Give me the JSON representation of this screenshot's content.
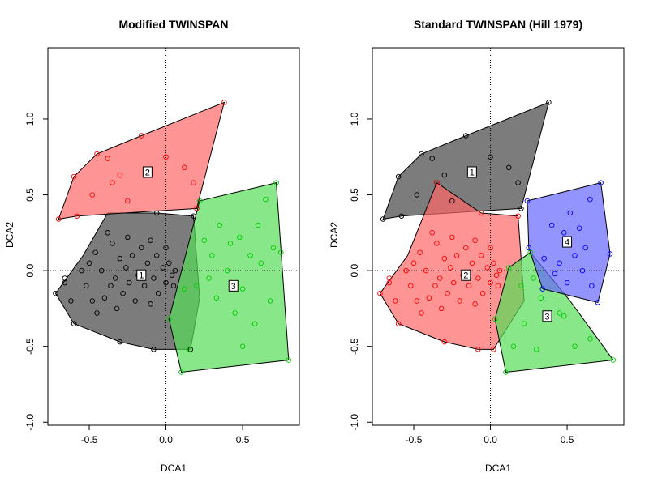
{
  "chart_data": [
    {
      "type": "scatter",
      "title": "Modified TWINSPAN",
      "xlabel": "DCA1",
      "ylabel": "DCA2",
      "xlim": [
        -0.77,
        0.87
      ],
      "ylim": [
        -1.02,
        1.47
      ],
      "xticks": [
        -0.5,
        0.0,
        0.5
      ],
      "xtick_labels": [
        "-0.5",
        "0.0",
        "0.5"
      ],
      "yticks": [
        -1.0,
        -0.5,
        0.0,
        0.5,
        1.0
      ],
      "ytick_labels": [
        "-1.0",
        "-0.5",
        "0.0",
        "0.5",
        "1.0"
      ],
      "groups": [
        {
          "label": "1",
          "color": "#000000",
          "fill": "#444444",
          "label_pos": [
            -0.16,
            -0.03
          ],
          "hull": [
            [
              -0.72,
              -0.15
            ],
            [
              -0.6,
              -0.35
            ],
            [
              -0.3,
              -0.47
            ],
            [
              -0.08,
              -0.52
            ],
            [
              0.16,
              -0.52
            ],
            [
              0.22,
              -0.18
            ],
            [
              0.18,
              0.36
            ],
            [
              -0.06,
              0.38
            ],
            [
              -0.38,
              0.38
            ],
            [
              -0.54,
              0.1
            ]
          ],
          "points": [
            [
              -0.72,
              -0.15
            ],
            [
              -0.66,
              -0.08
            ],
            [
              -0.66,
              -0.05
            ],
            [
              -0.62,
              -0.2
            ],
            [
              -0.6,
              -0.35
            ],
            [
              -0.55,
              0.0
            ],
            [
              -0.52,
              -0.1
            ],
            [
              -0.5,
              0.05
            ],
            [
              -0.48,
              -0.2
            ],
            [
              -0.46,
              0.12
            ],
            [
              -0.45,
              -0.28
            ],
            [
              -0.42,
              0.0
            ],
            [
              -0.4,
              -0.18
            ],
            [
              -0.38,
              0.25
            ],
            [
              -0.36,
              -0.1
            ],
            [
              -0.35,
              0.18
            ],
            [
              -0.33,
              -0.05
            ],
            [
              -0.32,
              -0.25
            ],
            [
              -0.3,
              0.08
            ],
            [
              -0.3,
              -0.47
            ],
            [
              -0.28,
              -0.15
            ],
            [
              -0.26,
              0.02
            ],
            [
              -0.25,
              0.22
            ],
            [
              -0.24,
              -0.08
            ],
            [
              -0.22,
              0.1
            ],
            [
              -0.2,
              -0.2
            ],
            [
              -0.18,
              -0.03
            ],
            [
              -0.16,
              0.15
            ],
            [
              -0.14,
              -0.1
            ],
            [
              -0.12,
              0.05
            ],
            [
              -0.1,
              0.2
            ],
            [
              -0.1,
              -0.22
            ],
            [
              -0.08,
              -0.05
            ],
            [
              -0.06,
              0.1
            ],
            [
              -0.05,
              -0.15
            ],
            [
              -0.02,
              0.02
            ],
            [
              0.0,
              0.15
            ],
            [
              0.0,
              -0.08
            ],
            [
              0.02,
              0.05
            ],
            [
              0.04,
              -0.03
            ],
            [
              0.05,
              -0.1
            ],
            [
              0.06,
              0.0
            ],
            [
              -0.08,
              -0.52
            ],
            [
              0.16,
              -0.52
            ],
            [
              0.18,
              0.36
            ],
            [
              -0.06,
              0.38
            ]
          ]
        },
        {
          "label": "2",
          "color": "#ff0000",
          "fill": "#ff6666",
          "label_pos": [
            -0.12,
            0.65
          ],
          "hull": [
            [
              -0.7,
              0.34
            ],
            [
              -0.6,
              0.62
            ],
            [
              -0.45,
              0.77
            ],
            [
              -0.16,
              0.89
            ],
            [
              0.38,
              1.11
            ],
            [
              0.2,
              0.41
            ],
            [
              -0.58,
              0.36
            ]
          ],
          "points": [
            [
              -0.7,
              0.34
            ],
            [
              -0.6,
              0.62
            ],
            [
              -0.45,
              0.77
            ],
            [
              -0.38,
              0.74
            ],
            [
              -0.16,
              0.89
            ],
            [
              0.38,
              1.11
            ],
            [
              0.2,
              0.41
            ],
            [
              -0.58,
              0.36
            ],
            [
              -0.48,
              0.5
            ],
            [
              -0.35,
              0.58
            ],
            [
              -0.25,
              0.46
            ],
            [
              0.12,
              0.68
            ],
            [
              0.18,
              0.58
            ],
            [
              -0.3,
              0.63
            ],
            [
              0.0,
              0.75
            ]
          ]
        },
        {
          "label": "3",
          "color": "#00cc00",
          "fill": "#55dd55",
          "label_pos": [
            0.44,
            -0.1
          ],
          "hull": [
            [
              0.02,
              -0.32
            ],
            [
              0.1,
              -0.67
            ],
            [
              0.8,
              -0.59
            ],
            [
              0.72,
              0.58
            ],
            [
              0.22,
              0.46
            ]
          ],
          "points": [
            [
              0.02,
              -0.32
            ],
            [
              0.1,
              -0.67
            ],
            [
              0.8,
              -0.59
            ],
            [
              0.72,
              0.58
            ],
            [
              0.22,
              0.46
            ],
            [
              0.15,
              -0.52
            ],
            [
              0.25,
              0.2
            ],
            [
              0.28,
              -0.05
            ],
            [
              0.3,
              0.1
            ],
            [
              0.33,
              -0.18
            ],
            [
              0.35,
              0.3
            ],
            [
              0.4,
              0.0
            ],
            [
              0.42,
              0.18
            ],
            [
              0.45,
              -0.28
            ],
            [
              0.48,
              0.22
            ],
            [
              0.5,
              -0.12
            ],
            [
              0.55,
              0.1
            ],
            [
              0.58,
              -0.35
            ],
            [
              0.6,
              0.3
            ],
            [
              0.62,
              0.05
            ],
            [
              0.65,
              0.47
            ],
            [
              0.68,
              -0.2
            ],
            [
              0.7,
              0.15
            ],
            [
              0.75,
              0.12
            ],
            [
              0.5,
              -0.5
            ],
            [
              0.12,
              -0.12
            ],
            [
              0.2,
              -0.1
            ]
          ]
        }
      ]
    },
    {
      "type": "scatter",
      "title": "Standard TWINSPAN (Hill 1979)",
      "xlabel": "DCA1",
      "ylabel": "DCA2",
      "xlim": [
        -0.77,
        0.87
      ],
      "ylim": [
        -1.02,
        1.47
      ],
      "xticks": [
        -0.5,
        0.0,
        0.5
      ],
      "xtick_labels": [
        "-0.5",
        "0.0",
        "0.5"
      ],
      "yticks": [
        -1.0,
        -0.5,
        0.0,
        0.5,
        1.0
      ],
      "ytick_labels": [
        "-1.0",
        "-0.5",
        "0.0",
        "0.5",
        "1.0"
      ],
      "groups": [
        {
          "label": "1",
          "color": "#000000",
          "fill": "#444444",
          "label_pos": [
            -0.12,
            0.65
          ],
          "hull": [
            [
              -0.7,
              0.34
            ],
            [
              -0.6,
              0.62
            ],
            [
              -0.45,
              0.77
            ],
            [
              -0.16,
              0.89
            ],
            [
              0.38,
              1.11
            ],
            [
              0.2,
              0.41
            ],
            [
              -0.58,
              0.36
            ]
          ],
          "points": [
            [
              -0.7,
              0.34
            ],
            [
              -0.6,
              0.62
            ],
            [
              -0.45,
              0.77
            ],
            [
              -0.38,
              0.74
            ],
            [
              -0.16,
              0.89
            ],
            [
              0.38,
              1.11
            ],
            [
              0.2,
              0.41
            ],
            [
              -0.58,
              0.36
            ],
            [
              -0.48,
              0.5
            ],
            [
              -0.35,
              0.58
            ],
            [
              -0.25,
              0.46
            ],
            [
              0.12,
              0.68
            ],
            [
              0.18,
              0.58
            ],
            [
              -0.3,
              0.63
            ],
            [
              0.0,
              0.75
            ]
          ]
        },
        {
          "label": "2",
          "color": "#ff0000",
          "fill": "#ff6666",
          "label_pos": [
            -0.16,
            -0.03
          ],
          "hull": [
            [
              -0.72,
              -0.15
            ],
            [
              -0.6,
              -0.35
            ],
            [
              -0.3,
              -0.47
            ],
            [
              -0.08,
              -0.52
            ],
            [
              0.02,
              -0.52
            ],
            [
              0.22,
              -0.2
            ],
            [
              0.18,
              0.36
            ],
            [
              -0.06,
              0.38
            ],
            [
              -0.35,
              0.58
            ],
            [
              -0.54,
              0.1
            ]
          ],
          "points": [
            [
              -0.72,
              -0.15
            ],
            [
              -0.66,
              -0.08
            ],
            [
              -0.66,
              -0.05
            ],
            [
              -0.62,
              -0.2
            ],
            [
              -0.6,
              -0.35
            ],
            [
              -0.55,
              0.0
            ],
            [
              -0.52,
              -0.1
            ],
            [
              -0.5,
              0.05
            ],
            [
              -0.48,
              -0.2
            ],
            [
              -0.46,
              0.12
            ],
            [
              -0.45,
              -0.28
            ],
            [
              -0.42,
              0.0
            ],
            [
              -0.4,
              -0.18
            ],
            [
              -0.38,
              0.25
            ],
            [
              -0.36,
              -0.1
            ],
            [
              -0.35,
              0.18
            ],
            [
              -0.33,
              -0.05
            ],
            [
              -0.32,
              -0.25
            ],
            [
              -0.3,
              0.08
            ],
            [
              -0.3,
              -0.47
            ],
            [
              -0.28,
              -0.15
            ],
            [
              -0.26,
              0.02
            ],
            [
              -0.25,
              0.22
            ],
            [
              -0.24,
              -0.08
            ],
            [
              -0.22,
              0.1
            ],
            [
              -0.2,
              -0.2
            ],
            [
              -0.18,
              -0.03
            ],
            [
              -0.16,
              0.15
            ],
            [
              -0.14,
              -0.1
            ],
            [
              -0.12,
              0.05
            ],
            [
              -0.1,
              0.2
            ],
            [
              -0.1,
              -0.22
            ],
            [
              -0.08,
              -0.05
            ],
            [
              -0.06,
              0.1
            ],
            [
              -0.05,
              -0.15
            ],
            [
              -0.02,
              0.02
            ],
            [
              0.0,
              0.15
            ],
            [
              0.0,
              -0.08
            ],
            [
              0.02,
              0.05
            ],
            [
              0.04,
              -0.03
            ],
            [
              0.05,
              -0.1
            ],
            [
              0.06,
              0.0
            ],
            [
              -0.08,
              -0.52
            ],
            [
              0.02,
              -0.52
            ],
            [
              0.18,
              0.36
            ],
            [
              -0.06,
              0.38
            ],
            [
              -0.35,
              0.58
            ]
          ]
        },
        {
          "label": "3",
          "color": "#00cc00",
          "fill": "#55dd55",
          "label_pos": [
            0.37,
            -0.3
          ],
          "hull": [
            [
              0.03,
              -0.32
            ],
            [
              0.1,
              -0.67
            ],
            [
              0.8,
              -0.59
            ],
            [
              0.52,
              -0.2
            ],
            [
              0.26,
              0.12
            ],
            [
              0.12,
              0.02
            ]
          ],
          "points": [
            [
              0.03,
              -0.32
            ],
            [
              0.1,
              -0.67
            ],
            [
              0.8,
              -0.59
            ],
            [
              0.26,
              0.12
            ],
            [
              0.12,
              0.02
            ],
            [
              0.15,
              -0.5
            ],
            [
              0.2,
              -0.1
            ],
            [
              0.28,
              -0.05
            ],
            [
              0.33,
              -0.18
            ],
            [
              0.45,
              -0.28
            ],
            [
              0.48,
              -0.3
            ],
            [
              0.55,
              -0.5
            ],
            [
              0.3,
              -0.52
            ],
            [
              0.65,
              -0.45
            ],
            [
              0.22,
              -0.35
            ]
          ]
        },
        {
          "label": "4",
          "color": "#0000ff",
          "fill": "#6666ff",
          "label_pos": [
            0.5,
            0.19
          ],
          "hull": [
            [
              0.24,
              0.46
            ],
            [
              0.72,
              0.58
            ],
            [
              0.78,
              0.11
            ],
            [
              0.7,
              -0.21
            ],
            [
              0.34,
              -0.12
            ],
            [
              0.25,
              0.15
            ]
          ],
          "points": [
            [
              0.24,
              0.46
            ],
            [
              0.72,
              0.58
            ],
            [
              0.78,
              0.11
            ],
            [
              0.7,
              -0.21
            ],
            [
              0.34,
              -0.12
            ],
            [
              0.25,
              0.15
            ],
            [
              0.4,
              0.3
            ],
            [
              0.45,
              0.05
            ],
            [
              0.48,
              0.25
            ],
            [
              0.5,
              -0.08
            ],
            [
              0.55,
              0.1
            ],
            [
              0.58,
              0.28
            ],
            [
              0.6,
              0.0
            ],
            [
              0.62,
              0.15
            ],
            [
              0.65,
              0.47
            ],
            [
              0.66,
              -0.1
            ],
            [
              0.35,
              0.08
            ],
            [
              0.42,
              -0.02
            ],
            [
              0.52,
              0.38
            ]
          ]
        }
      ]
    }
  ]
}
